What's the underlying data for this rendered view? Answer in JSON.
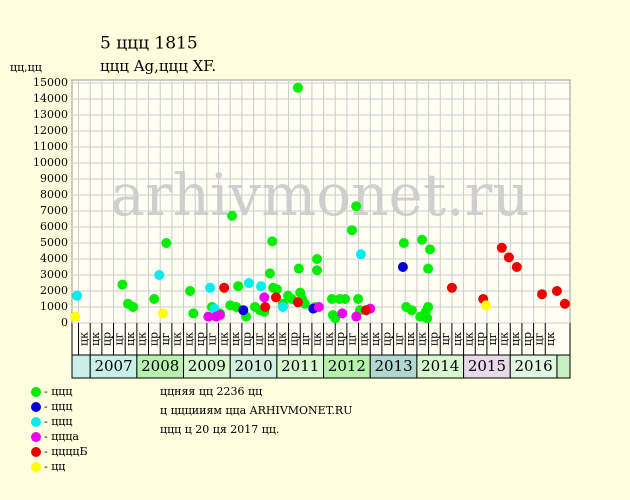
{
  "chart_data": {
    "type": "scatter",
    "title": "5 ццц 1815",
    "subtitle": "ццц Ag,ццц XF.",
    "ylabel": "цц,цц",
    "watermark": "arhivmonet.ru",
    "xlim": [
      2006.61,
      2017.28
    ],
    "ylim": [
      0,
      15000
    ],
    "yticks": [
      0,
      1000,
      2000,
      3000,
      4000,
      5000,
      6000,
      7000,
      8000,
      9000,
      10000,
      11000,
      12000,
      13000,
      14000,
      15000
    ],
    "xticks": [
      {
        "value": 2006.75,
        "label": "цк"
      },
      {
        "value": 2007,
        "label": "цк"
      },
      {
        "value": 2007.25,
        "label": "цр"
      },
      {
        "value": 2007.5,
        "label": "цг"
      },
      {
        "value": 2007.75,
        "label": "цк"
      },
      {
        "value": 2008,
        "label": "цк"
      },
      {
        "value": 2008.25,
        "label": "цр"
      },
      {
        "value": 2008.5,
        "label": "цг"
      },
      {
        "value": 2008.75,
        "label": "цк"
      },
      {
        "value": 2009,
        "label": "цк"
      },
      {
        "value": 2009.25,
        "label": "цр"
      },
      {
        "value": 2009.5,
        "label": "цг"
      },
      {
        "value": 2009.75,
        "label": "цк"
      },
      {
        "value": 2010,
        "label": "цк"
      },
      {
        "value": 2010.25,
        "label": "цр"
      },
      {
        "value": 2010.5,
        "label": "цг"
      },
      {
        "value": 2010.75,
        "label": "цк"
      },
      {
        "value": 2011,
        "label": "цк"
      },
      {
        "value": 2011.25,
        "label": "цр"
      },
      {
        "value": 2011.5,
        "label": "цг"
      },
      {
        "value": 2011.75,
        "label": "цк"
      },
      {
        "value": 2012,
        "label": "цк"
      },
      {
        "value": 2012.25,
        "label": "цр"
      },
      {
        "value": 2012.5,
        "label": "цг"
      },
      {
        "value": 2012.75,
        "label": "цк"
      },
      {
        "value": 2013,
        "label": "цк"
      },
      {
        "value": 2013.25,
        "label": "цр"
      },
      {
        "value": 2013.5,
        "label": "цг"
      },
      {
        "value": 2013.75,
        "label": "цк"
      },
      {
        "value": 2014,
        "label": "цк"
      },
      {
        "value": 2014.25,
        "label": "цр"
      },
      {
        "value": 2014.5,
        "label": "цг"
      },
      {
        "value": 2014.75,
        "label": "цк"
      },
      {
        "value": 2015,
        "label": "цк"
      },
      {
        "value": 2015.25,
        "label": "цр"
      },
      {
        "value": 2015.5,
        "label": "цг"
      },
      {
        "value": 2015.75,
        "label": "цк"
      },
      {
        "value": 2016,
        "label": "цк"
      },
      {
        "value": 2016.25,
        "label": "цр"
      },
      {
        "value": 2016.5,
        "label": "цг"
      },
      {
        "value": 2016.75,
        "label": "цк"
      }
    ],
    "years": [
      2007,
      2008,
      2009,
      2010,
      2011,
      2012,
      2013,
      2014,
      2015,
      2016
    ],
    "year_colors": [
      "#c8f0e8",
      "#b8f0b0",
      "#d8f8d0",
      "#d0f0e0",
      "#d8f8d0",
      "#b8f0b0",
      "#b0d8d0",
      "#d8f8d0",
      "#e8d8e8",
      "#e0f8e0"
    ],
    "grid": true,
    "series": [
      {
        "name": "- ццц",
        "color": "#00ee00",
        "x": [
          2007.69,
          2007.81,
          2007.92,
          2008.37,
          2008.63,
          2009.14,
          2009.21,
          2009.61,
          2009.78,
          2010.0,
          2010.04,
          2010.13,
          2010.17,
          2010.34,
          2010.53,
          2010.64,
          2010.73,
          2010.85,
          2010.9,
          2010.92,
          2011.0,
          2011.13,
          2011.24,
          2011.32,
          2011.45,
          2011.47,
          2011.5,
          2011.54,
          2011.6,
          2011.82,
          2011.86,
          2011.86,
          2012.18,
          2012.2,
          2012.25,
          2012.35,
          2012.46,
          2012.61,
          2012.7,
          2012.74,
          2012.78,
          2013.72,
          2013.77,
          2013.89,
          2014.07,
          2014.11,
          2014.19,
          2014.22,
          2014.24,
          2014.24,
          2014.28
        ],
        "values": [
          2400,
          1200,
          1000,
          1500,
          5000,
          2000,
          600,
          1000,
          600,
          1100,
          6700,
          1000,
          2300,
          400,
          1000,
          800,
          700,
          3100,
          5100,
          2200,
          2100,
          1200,
          1700,
          1500,
          14700,
          3400,
          1900,
          1500,
          1200,
          1000,
          4000,
          3300,
          1500,
          500,
          300,
          1500,
          1500,
          5800,
          7300,
          1500,
          800,
          5000,
          1000,
          800,
          400,
          5200,
          700,
          300,
          1000,
          3400,
          4600
        ]
      },
      {
        "name": "- ццц",
        "color": "#0000dd",
        "x": [
          2010.28,
          2011.78,
          2013.7
        ],
        "values": [
          800,
          900,
          3500
        ]
      },
      {
        "name": "- ццц",
        "color": "#00eeee",
        "x": [
          2006.72,
          2008.48,
          2009.57,
          2009.66,
          2010.4,
          2010.66,
          2011.13,
          2012.8
        ],
        "values": [
          1700,
          3000,
          2200,
          900,
          2500,
          2300,
          1000,
          4300
        ]
      },
      {
        "name": "- цццa",
        "color": "#ee00ee",
        "x": [
          2009.53,
          2009.7,
          2009.78,
          2010.73,
          2011.9,
          2012.4,
          2012.7,
          2013.0
        ],
        "values": [
          400,
          400,
          500,
          1600,
          1000,
          600,
          400,
          900
        ]
      },
      {
        "name": "- ццццБ",
        "color": "#ee0000",
        "x": [
          2009.87,
          2010.75,
          2010.98,
          2011.45,
          2012.91,
          2014.75,
          2015.42,
          2015.82,
          2015.97,
          2016.14,
          2016.68,
          2017.0,
          2017.17
        ],
        "values": [
          2200,
          1000,
          1600,
          1300,
          800,
          2200,
          1500,
          4700,
          4100,
          3500,
          1800,
          2000,
          1200
        ]
      },
      {
        "name": "- цц",
        "color": "#ffff00",
        "x": [
          2006.68,
          2008.56,
          2015.48
        ],
        "values": [
          400,
          600,
          1100
        ]
      }
    ],
    "notes": [
      "ццняя цц 2236 цц",
      "ц цццииям цца ARHIVMONET.RU",
      "ццц ц 20 ця 2017 цц."
    ]
  }
}
